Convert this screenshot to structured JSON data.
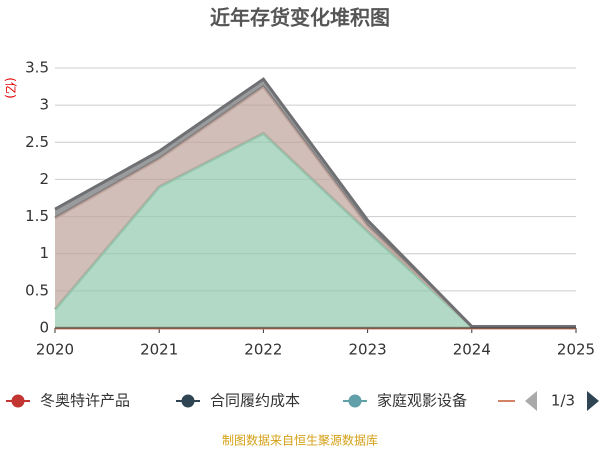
{
  "chart_data": {
    "type": "stacked_area",
    "title": "近年存货变化堆积图",
    "y_unit": "(亿)",
    "x": [
      2020,
      2021,
      2022,
      2023,
      2024,
      2025
    ],
    "xlim": [
      2020,
      2025
    ],
    "xticks": [
      2020,
      2021,
      2022,
      2023,
      2024,
      2025
    ],
    "ylim": [
      0,
      3.5
    ],
    "yticks": [
      0,
      0.5,
      1,
      1.5,
      2,
      2.5,
      3,
      3.5
    ],
    "grid": true,
    "series": [
      {
        "name": "冬奥特许产品",
        "color": "#c23531",
        "values": [
          0,
          0,
          0,
          0,
          0,
          0
        ]
      },
      {
        "name": "合同履约成本",
        "color": "#2f4554",
        "values": [
          0,
          0,
          0,
          0,
          0,
          0
        ]
      },
      {
        "name": "家庭观影设备",
        "color": "#61a0a8",
        "values": [
          0,
          0,
          0,
          0,
          0,
          0
        ]
      },
      {
        "color": "#d48265",
        "values": [
          0,
          0,
          0,
          0,
          0,
          0
        ]
      },
      {
        "color": "#91c7ae",
        "values": [
          0.25,
          1.9,
          2.62,
          1.3,
          0.02,
          0.02
        ]
      },
      {
        "color": "#bda29a",
        "values": [
          1.23,
          0.38,
          0.63,
          0.08,
          0,
          0
        ]
      },
      {
        "color": "#6e7074",
        "values": [
          0.12,
          0.1,
          0.1,
          0.07,
          0,
          0
        ]
      }
    ],
    "legend_page": "1/3",
    "footer": "制图数据来自恒生聚源数据库"
  }
}
